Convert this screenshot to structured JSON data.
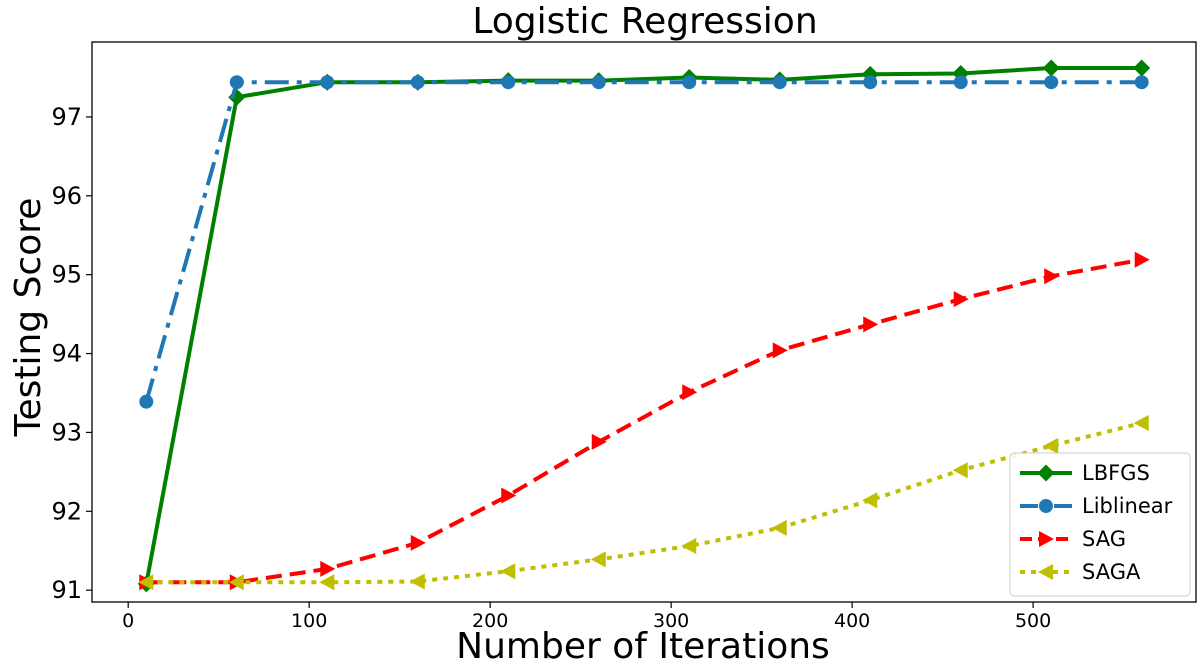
{
  "chart_data": {
    "type": "line",
    "title": "Logistic Regression",
    "xlabel": "Number of Iterations",
    "ylabel": "Testing Score",
    "xlim": [
      -20,
      590
    ],
    "ylim": [
      90.85,
      97.95
    ],
    "xticks": [
      0,
      100,
      200,
      300,
      400,
      500
    ],
    "yticks": [
      91,
      92,
      93,
      94,
      95,
      96,
      97
    ],
    "grid": false,
    "legend_position": "lower-right",
    "x": [
      10,
      60,
      110,
      160,
      210,
      260,
      310,
      360,
      410,
      460,
      510,
      560
    ],
    "series": [
      {
        "name": "LBFGS",
        "color": "#008000",
        "linestyle": "solid",
        "marker": "diamond",
        "values": [
          91.08,
          97.25,
          97.44,
          97.44,
          97.46,
          97.46,
          97.5,
          97.47,
          97.54,
          97.55,
          97.62,
          97.62
        ]
      },
      {
        "name": "Liblinear",
        "color": "#1f77b4",
        "linestyle": "dashdot",
        "marker": "circle",
        "values": [
          93.39,
          97.44,
          97.44,
          97.44,
          97.44,
          97.44,
          97.44,
          97.44,
          97.44,
          97.44,
          97.44,
          97.44
        ]
      },
      {
        "name": "SAG",
        "color": "#ff0000",
        "linestyle": "dashed",
        "marker": "triangle-right",
        "values": [
          91.1,
          91.1,
          91.27,
          91.6,
          92.2,
          92.88,
          93.51,
          94.04,
          94.37,
          94.69,
          94.98,
          95.19
        ]
      },
      {
        "name": "SAGA",
        "color": "#bfbf00",
        "linestyle": "dotted",
        "marker": "triangle-left",
        "values": [
          91.1,
          91.1,
          91.1,
          91.11,
          91.24,
          91.39,
          91.56,
          91.79,
          92.14,
          92.52,
          92.83,
          93.12
        ]
      }
    ]
  }
}
